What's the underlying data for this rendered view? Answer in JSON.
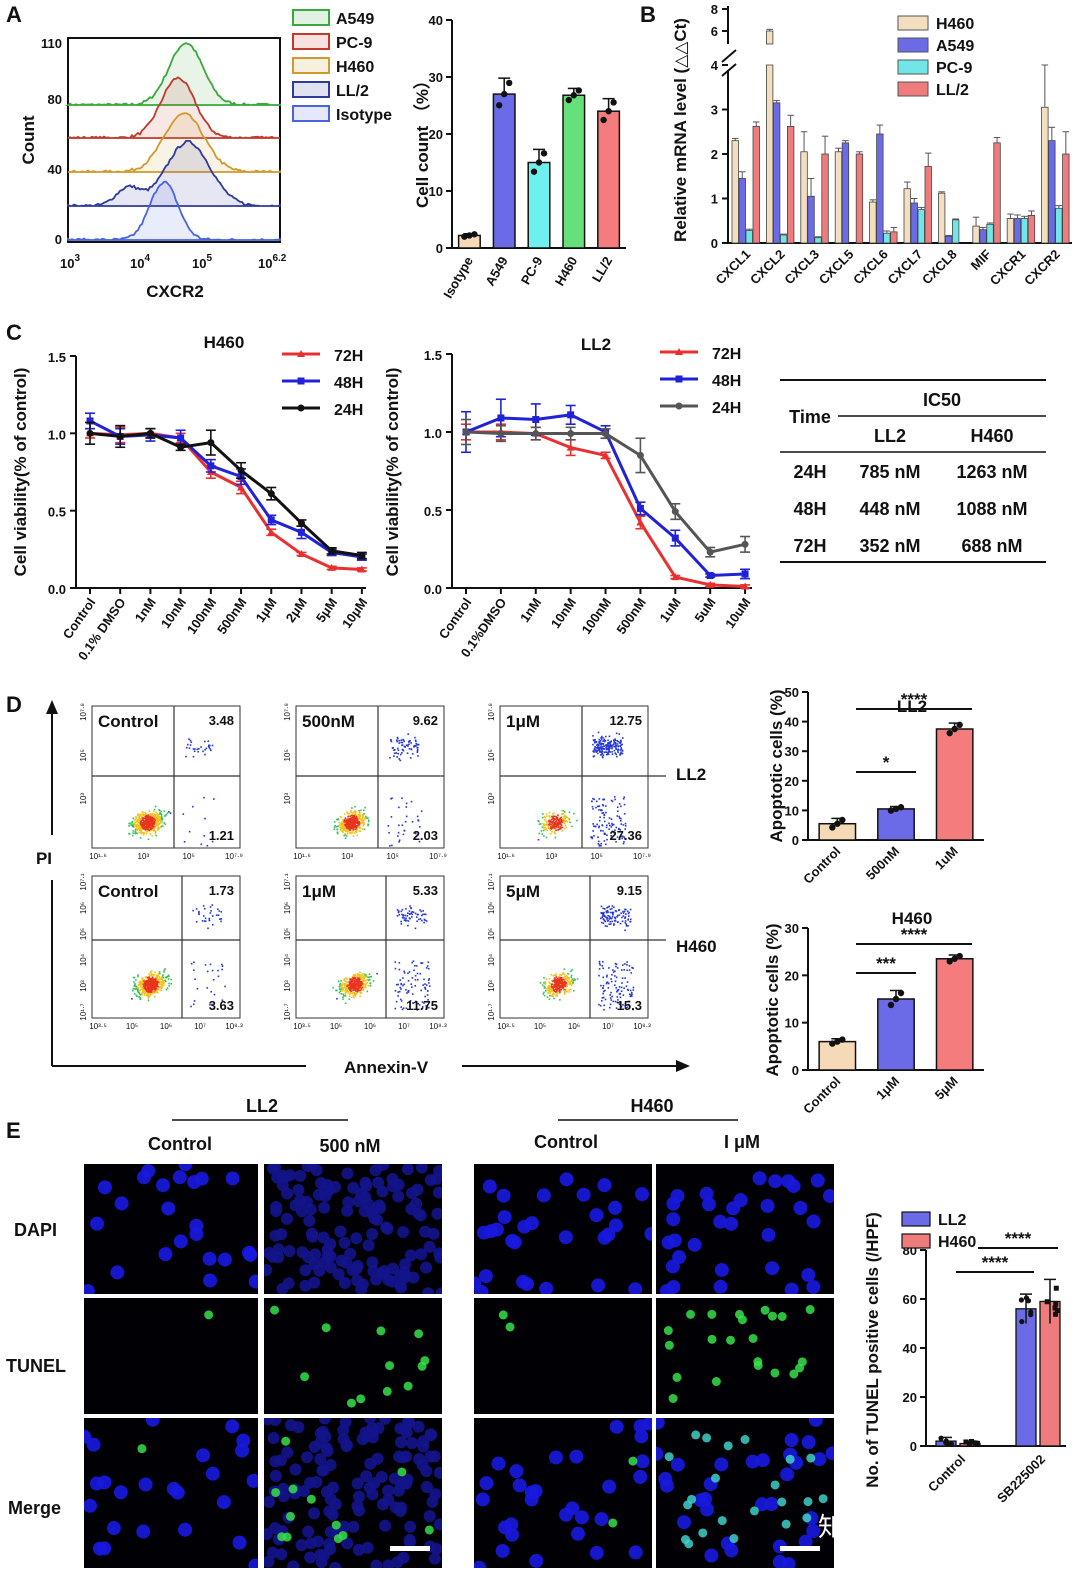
{
  "panel_letters": [
    "A",
    "B",
    "C",
    "D",
    "E"
  ],
  "chart_data": [
    {
      "id": "A_flow",
      "type": "histogram",
      "xlabel": "CXCR2",
      "ylabel": "Count",
      "x_ticks": [
        "10",
        "3",
        "10",
        "4",
        "10",
        "5",
        "10",
        "6.2"
      ],
      "y_ticks": [
        "0",
        "40",
        "80",
        "110"
      ],
      "legend": [
        "A549",
        "PC-9",
        "H460",
        "LL/2",
        "Isotype"
      ],
      "colors": [
        "#3aa83a",
        "#c0392b",
        "#d19a2a",
        "#2e3a9c",
        "#4a63e0"
      ]
    },
    {
      "id": "A_bar",
      "type": "bar",
      "title": "",
      "ylabel": "Cell count （%）",
      "ylim": [
        0,
        40
      ],
      "y_ticks": [
        "0",
        "10",
        "20",
        "30",
        "40"
      ],
      "categories": [
        "Isotype",
        "A549",
        "PC-9",
        "H460",
        "LL/2"
      ],
      "values": [
        2.2,
        27,
        15,
        26.8,
        24
      ],
      "errors": [
        0.3,
        2.8,
        2.3,
        1.2,
        2.2
      ],
      "colors": [
        "#f6d9b7",
        "#6b6be8",
        "#6ff0f0",
        "#66e07a",
        "#f47c7c"
      ]
    },
    {
      "id": "B_mrna",
      "type": "bar",
      "ylabel": "Relative mRNA level (△△Ct)",
      "y_ticks_low": [
        "0",
        "1",
        "2",
        "3",
        "4"
      ],
      "y_ticks_high": [
        "6",
        "8"
      ],
      "categories": [
        "CXCL1",
        "CXCL2",
        "CXCL3",
        "CXCL5",
        "CXCL6",
        "CXCL7",
        "CXCL8",
        "MIF",
        "CXCR1",
        "CXCR2"
      ],
      "series": [
        {
          "name": "H460",
          "color": "#f3dfbf",
          "values": [
            2.3,
            6.0,
            2.05,
            2.05,
            0.92,
            1.22,
            1.12,
            0.38,
            0.55,
            3.05
          ],
          "errors": [
            0.05,
            0.15,
            0.45,
            0.08,
            0.05,
            0.15,
            0.03,
            0.2,
            0.1,
            0.95
          ]
        },
        {
          "name": "A549",
          "color": "#6b6be8",
          "values": [
            1.45,
            3.15,
            1.05,
            2.25,
            2.45,
            0.9,
            0.15,
            0.3,
            0.55,
            2.3
          ],
          "errors": [
            0.15,
            0.05,
            0.4,
            0.05,
            0.2,
            0.1,
            0.02,
            0.05,
            0.08,
            0.3
          ]
        },
        {
          "name": "PC-9",
          "color": "#72e6e6",
          "values": [
            0.28,
            0.18,
            0.12,
            0.0,
            0.22,
            0.75,
            0.52,
            0.42,
            0.55,
            0.78
          ],
          "errors": [
            0.03,
            0.02,
            0.02,
            0.0,
            0.05,
            0.05,
            0.02,
            0.03,
            0.05,
            0.06
          ]
        },
        {
          "name": "LL/2",
          "color": "#ee7c7c",
          "values": [
            2.62,
            2.62,
            2.0,
            2.0,
            0.25,
            1.72,
            0.0,
            2.25,
            0.62,
            2.0
          ],
          "errors": [
            0.1,
            0.25,
            0.4,
            0.05,
            0.1,
            0.3,
            0.0,
            0.12,
            0.1,
            0.5
          ]
        }
      ]
    },
    {
      "id": "C_H460",
      "type": "line",
      "title": "H460",
      "ylabel": "Cell viability(% of control)",
      "ylim": [
        0,
        1.5
      ],
      "y_ticks": [
        "0.0",
        "0.5",
        "1.0",
        "1.5"
      ],
      "categories": [
        "Control",
        "0.1% DMSO",
        "1nM",
        "10nM",
        "100nM",
        "500nM",
        "1μM",
        "2μM",
        "5μM",
        "10μM"
      ],
      "series": [
        {
          "name": "72H",
          "color": "#e83030",
          "values": [
            1.0,
            0.99,
            1.0,
            0.97,
            0.75,
            0.65,
            0.36,
            0.22,
            0.13,
            0.12
          ],
          "errors": [
            0.03,
            0.05,
            0.03,
            0.03,
            0.04,
            0.04,
            0.02,
            0.01,
            0.01,
            0.01
          ]
        },
        {
          "name": "48H",
          "color": "#2121d8",
          "values": [
            1.08,
            0.98,
            0.99,
            0.97,
            0.79,
            0.72,
            0.44,
            0.36,
            0.23,
            0.2
          ],
          "errors": [
            0.05,
            0.05,
            0.04,
            0.05,
            0.04,
            0.05,
            0.03,
            0.04,
            0.02,
            0.02
          ]
        },
        {
          "name": "24H",
          "color": "#111111",
          "values": [
            1.0,
            0.98,
            1.0,
            0.91,
            0.94,
            0.76,
            0.61,
            0.42,
            0.24,
            0.21
          ],
          "errors": [
            0.07,
            0.07,
            0.03,
            0.02,
            0.08,
            0.05,
            0.04,
            0.02,
            0.02,
            0.02
          ]
        }
      ]
    },
    {
      "id": "C_LL2",
      "type": "line",
      "title": "LL2",
      "ylabel": "Cell viability(% of control)",
      "ylim": [
        0,
        1.5
      ],
      "y_ticks": [
        "0.0",
        "0.5",
        "1.0",
        "1.5"
      ],
      "categories": [
        "Control",
        "0.1%DMSO",
        "1nM",
        "10nM",
        "100nM",
        "500nM",
        "1uM",
        "5uM",
        "10uM"
      ],
      "series": [
        {
          "name": "72H",
          "color": "#e83030",
          "values": [
            1.0,
            1.0,
            0.99,
            0.9,
            0.85,
            0.42,
            0.07,
            0.02,
            0.01
          ],
          "errors": [
            0.05,
            0.05,
            0.04,
            0.05,
            0.02,
            0.04,
            0.01,
            0.01,
            0.01
          ]
        },
        {
          "name": "48H",
          "color": "#2121d8",
          "values": [
            1.0,
            1.09,
            1.08,
            1.11,
            1.0,
            0.51,
            0.32,
            0.08,
            0.09
          ],
          "errors": [
            0.13,
            0.12,
            0.1,
            0.06,
            0.04,
            0.04,
            0.05,
            0.01,
            0.03
          ]
        },
        {
          "name": "24H",
          "color": "#555555",
          "values": [
            1.0,
            0.99,
            0.99,
            0.99,
            0.99,
            0.85,
            0.49,
            0.23,
            0.28
          ],
          "errors": [
            0.08,
            0.05,
            0.04,
            0.04,
            0.03,
            0.11,
            0.05,
            0.03,
            0.05
          ]
        }
      ]
    },
    {
      "id": "C_table",
      "type": "table",
      "columns": [
        "Time",
        "IC50"
      ],
      "sub_columns": [
        "LL2",
        "H460"
      ],
      "rows": [
        [
          "24H",
          "785 nM",
          "1263 nM"
        ],
        [
          "48H",
          "448 nM",
          "1088 nM"
        ],
        [
          "72H",
          "352 nM",
          "688 nM"
        ]
      ]
    },
    {
      "id": "D_flow",
      "type": "scatter",
      "xlabel": "Annexin-V",
      "ylabel": "PI",
      "row_labels": [
        "LL2",
        "H460"
      ],
      "plots": [
        {
          "condition": "Control",
          "ur": "3.48",
          "lr": "1.21"
        },
        {
          "condition": "500nM",
          "ur": "9.62",
          "lr": "2.03"
        },
        {
          "condition": "1μM",
          "ur": "12.75",
          "lr": "27.36"
        },
        {
          "condition": "Control",
          "ur": "1.73",
          "lr": "3.63"
        },
        {
          "condition": "1μM",
          "ur": "5.33",
          "lr": "11.75"
        },
        {
          "condition": "5μM",
          "ur": "9.15",
          "lr": "15.3"
        }
      ]
    },
    {
      "id": "D_LL2_bar",
      "type": "bar",
      "title": "LL2",
      "ylabel": "Apoptotic cells (%)",
      "ylim": [
        0,
        50
      ],
      "y_ticks": [
        "0",
        "10",
        "20",
        "30",
        "40",
        "50"
      ],
      "categories": [
        "Control",
        "500nM",
        "1uM"
      ],
      "values": [
        5.5,
        10.5,
        37.5
      ],
      "errors": [
        1.8,
        0.8,
        2.0
      ],
      "colors": [
        "#f6d9b7",
        "#6b6be8",
        "#f47c7c"
      ],
      "significance": [
        "*",
        "****"
      ]
    },
    {
      "id": "D_H460_bar",
      "type": "bar",
      "title": "H460",
      "ylabel": "Apoptotic cells (%)",
      "ylim": [
        0,
        30
      ],
      "y_ticks": [
        "0",
        "10",
        "20",
        "30"
      ],
      "categories": [
        "Control",
        "1μM",
        "5μM"
      ],
      "values": [
        6.0,
        15.0,
        23.5
      ],
      "errors": [
        0.6,
        1.8,
        0.8
      ],
      "colors": [
        "#f6d9b7",
        "#6b6be8",
        "#f47c7c"
      ],
      "significance": [
        "***",
        "****"
      ]
    },
    {
      "id": "E_tunel",
      "type": "bar",
      "ylabel": "No. of TUNEL positive cells (/HPF)",
      "ylim": [
        0,
        80
      ],
      "y_ticks": [
        "0",
        "20",
        "40",
        "60",
        "80"
      ],
      "categories": [
        "Control",
        "SB225002"
      ],
      "series": [
        {
          "name": "LL2",
          "color": "#6b6be8",
          "values": [
            2.0,
            56.0
          ],
          "errors": [
            1.5,
            6.0
          ]
        },
        {
          "name": "H460",
          "color": "#ee7c7c",
          "values": [
            1.0,
            59.0
          ],
          "errors": [
            1.0,
            9.0
          ]
        }
      ],
      "significance": [
        "****",
        "****"
      ]
    }
  ],
  "panel_E": {
    "groups": [
      {
        "name": "LL2",
        "conditions": [
          "Control",
          "500 nM"
        ]
      },
      {
        "name": "H460",
        "conditions": [
          "Control",
          "I μM"
        ]
      }
    ],
    "rows": [
      "DAPI",
      "TUNEL",
      "Merge"
    ]
  },
  "watermark": "知乎 @粒成生物"
}
